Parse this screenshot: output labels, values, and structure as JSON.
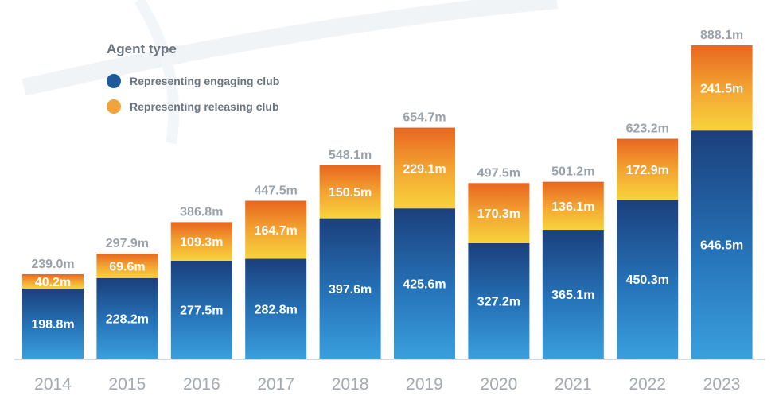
{
  "legend": {
    "title": "Agent type",
    "items": [
      {
        "label": "Representing engaging club",
        "color": "#1f5a9b"
      },
      {
        "label": "Representing releasing club",
        "color": "#f2a33a"
      }
    ]
  },
  "chart_data": {
    "type": "bar",
    "stacked": true,
    "title": "",
    "xlabel": "",
    "ylabel": "",
    "categories": [
      "2014",
      "2015",
      "2016",
      "2017",
      "2018",
      "2019",
      "2020",
      "2021",
      "2022",
      "2023"
    ],
    "series": [
      {
        "name": "Representing engaging club",
        "values": [
          198.8,
          228.2,
          277.5,
          282.8,
          397.6,
          425.6,
          327.2,
          365.1,
          450.3,
          646.5
        ],
        "labels": [
          "198.8m",
          "228.2m",
          "277.5m",
          "282.8m",
          "397.6m",
          "425.6m",
          "327.2m",
          "365.1m",
          "450.3m",
          "646.5m"
        ]
      },
      {
        "name": "Representing releasing club",
        "values": [
          40.2,
          69.6,
          109.3,
          164.7,
          150.5,
          229.1,
          170.3,
          136.1,
          172.9,
          241.5
        ],
        "labels": [
          "40.2m",
          "69.6m",
          "109.3m",
          "164.7m",
          "150.5m",
          "229.1m",
          "170.3m",
          "136.1m",
          "172.9m",
          "241.5m"
        ]
      }
    ],
    "totals": [
      239.0,
      297.9,
      386.8,
      447.5,
      548.1,
      654.7,
      497.5,
      501.2,
      623.2,
      888.1
    ],
    "total_labels": [
      "239.0m",
      "297.9m",
      "386.8m",
      "447.5m",
      "548.1m",
      "654.7m",
      "497.5m",
      "501.2m",
      "623.2m",
      "888.1m"
    ],
    "ylim": [
      0,
      888.1
    ],
    "grid": false,
    "legend_position": "top-left"
  }
}
